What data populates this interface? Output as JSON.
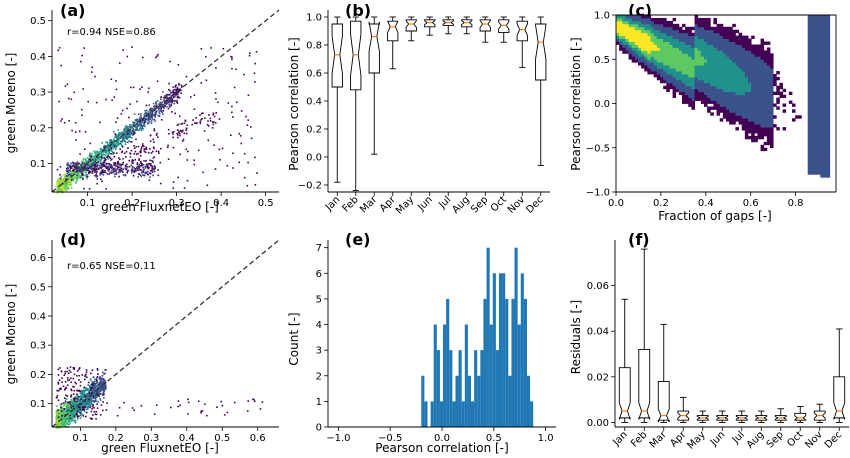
{
  "chart_data": [
    {
      "panel": "(a)",
      "type": "scatter",
      "xlabel": "green FluxnetEO [-]",
      "ylabel": "green Moreno [-]",
      "annotation": "r=0.94 NSE=0.86",
      "xlim": [
        0.02,
        0.53
      ],
      "ylim": [
        0.02,
        0.53
      ],
      "xticks": [
        "0.1",
        "0.2",
        "0.3",
        "0.4",
        "0.5"
      ],
      "yticks": [
        "0.1",
        "0.2",
        "0.3",
        "0.4",
        "0.5"
      ],
      "reference_line": "1:1 dashed",
      "colors": {
        "dense": "#5ec962",
        "mid": "#21918c",
        "sparse": "#440154"
      }
    },
    {
      "panel": "(b)",
      "type": "box",
      "ylabel": "Pearson correlation [-]",
      "ylim": [
        -0.25,
        1.05
      ],
      "yticks": [
        "−0.2",
        "0.0",
        "0.2",
        "0.4",
        "0.6",
        "0.8",
        "1.0"
      ],
      "categories": [
        "Jan",
        "Feb",
        "Mar",
        "Apr",
        "May",
        "Jun",
        "Jul",
        "Aug",
        "Sep",
        "Oct",
        "Nov",
        "Dec"
      ],
      "boxes": [
        {
          "min": -0.18,
          "q1": 0.5,
          "med": 0.73,
          "q3": 0.95,
          "max": 1.0
        },
        {
          "min": -0.24,
          "q1": 0.48,
          "med": 0.73,
          "q3": 0.97,
          "max": 1.0
        },
        {
          "min": 0.02,
          "q1": 0.6,
          "med": 0.86,
          "q3": 0.95,
          "max": 1.0
        },
        {
          "min": 0.63,
          "q1": 0.83,
          "med": 0.93,
          "q3": 0.97,
          "max": 1.0
        },
        {
          "min": 0.83,
          "q1": 0.9,
          "med": 0.95,
          "q3": 0.98,
          "max": 1.0
        },
        {
          "min": 0.87,
          "q1": 0.93,
          "med": 0.96,
          "q3": 0.98,
          "max": 1.0
        },
        {
          "min": 0.88,
          "q1": 0.94,
          "med": 0.96,
          "q3": 0.98,
          "max": 1.0
        },
        {
          "min": 0.88,
          "q1": 0.93,
          "med": 0.96,
          "q3": 0.98,
          "max": 1.0
        },
        {
          "min": 0.82,
          "q1": 0.9,
          "med": 0.95,
          "q3": 0.98,
          "max": 1.0
        },
        {
          "min": 0.82,
          "q1": 0.89,
          "med": 0.94,
          "q3": 0.98,
          "max": 1.0
        },
        {
          "min": 0.64,
          "q1": 0.83,
          "med": 0.91,
          "q3": 0.97,
          "max": 1.0
        },
        {
          "min": -0.06,
          "q1": 0.55,
          "med": 0.82,
          "q3": 0.95,
          "max": 1.0
        }
      ],
      "box_color": "#000000",
      "median_color": "#ff7f0e"
    },
    {
      "panel": "(c)",
      "type": "heatmap",
      "xlabel": "Fraction of gaps [-]",
      "ylabel": "Pearson correlation [-]",
      "xlim": [
        0.0,
        0.98
      ],
      "ylim": [
        -1.0,
        1.0
      ],
      "xticks": [
        "0.0",
        "0.2",
        "0.4",
        "0.6",
        "0.8"
      ],
      "yticks": [
        "−1.0",
        "−0.5",
        "0.0",
        "0.5",
        "1.0"
      ],
      "colormap": [
        "#440154",
        "#3b528b",
        "#21918c",
        "#5ec962",
        "#fde725"
      ]
    },
    {
      "panel": "(d)",
      "type": "scatter",
      "xlabel": "green FluxnetEO [-]",
      "ylabel": "green Moreno [-]",
      "annotation": "r=0.65 NSE=0.11",
      "xlim": [
        0.02,
        0.66
      ],
      "ylim": [
        0.02,
        0.66
      ],
      "xticks": [
        "0.1",
        "0.2",
        "0.3",
        "0.4",
        "0.5",
        "0.6"
      ],
      "yticks": [
        "0.1",
        "0.2",
        "0.3",
        "0.4",
        "0.5",
        "0.6"
      ],
      "reference_line": "1:1 dashed"
    },
    {
      "panel": "(e)",
      "type": "bar",
      "xlabel": "Pearson correlation [-]",
      "ylabel": "Count [-]",
      "xlim": [
        -1.1,
        1.1
      ],
      "ylim": [
        0,
        7.3
      ],
      "xticks": [
        "−1.0",
        "−0.5",
        "0.0",
        "0.5",
        "1.0"
      ],
      "yticks": [
        "0",
        "1",
        "2",
        "3",
        "4",
        "5",
        "6",
        "7"
      ],
      "bin_start": -0.2,
      "bin_width": 0.03,
      "counts": [
        2,
        1,
        0,
        1,
        4,
        3,
        1,
        4,
        5,
        3,
        1,
        2,
        3,
        1,
        4,
        2,
        1,
        3,
        2,
        3,
        5,
        7,
        4,
        6,
        3,
        6,
        6,
        5,
        2,
        5,
        7,
        4,
        6,
        5,
        2,
        1
      ],
      "bar_color": "#1f77b4"
    },
    {
      "panel": "(f)",
      "type": "box",
      "ylabel": "Residuals [-]",
      "ylim": [
        -0.002,
        0.08
      ],
      "yticks": [
        "0.00",
        "0.02",
        "0.04",
        "0.06"
      ],
      "categories": [
        "Jan",
        "Feb",
        "Mar",
        "Apr",
        "May",
        "Jun",
        "Jul",
        "Aug",
        "Sep",
        "Oct",
        "Nov",
        "Dec"
      ],
      "boxes": [
        {
          "min": 0.0,
          "q1": 0.002,
          "med": 0.005,
          "q3": 0.024,
          "max": 0.054
        },
        {
          "min": 0.0,
          "q1": 0.002,
          "med": 0.005,
          "q3": 0.032,
          "max": 0.076
        },
        {
          "min": 0.0,
          "q1": 0.001,
          "med": 0.003,
          "q3": 0.018,
          "max": 0.043
        },
        {
          "min": 0.0,
          "q1": 0.001,
          "med": 0.003,
          "q3": 0.005,
          "max": 0.011
        },
        {
          "min": 0.0,
          "q1": 0.001,
          "med": 0.002,
          "q3": 0.003,
          "max": 0.005
        },
        {
          "min": 0.0,
          "q1": 0.001,
          "med": 0.002,
          "q3": 0.003,
          "max": 0.005
        },
        {
          "min": 0.0,
          "q1": 0.001,
          "med": 0.002,
          "q3": 0.003,
          "max": 0.005
        },
        {
          "min": 0.0,
          "q1": 0.001,
          "med": 0.002,
          "q3": 0.003,
          "max": 0.005
        },
        {
          "min": 0.0,
          "q1": 0.001,
          "med": 0.002,
          "q3": 0.003,
          "max": 0.006
        },
        {
          "min": 0.0,
          "q1": 0.001,
          "med": 0.002,
          "q3": 0.004,
          "max": 0.007
        },
        {
          "min": 0.0,
          "q1": 0.001,
          "med": 0.003,
          "q3": 0.005,
          "max": 0.008
        },
        {
          "min": 0.0,
          "q1": 0.002,
          "med": 0.005,
          "q3": 0.02,
          "max": 0.041
        }
      ],
      "box_color": "#000000",
      "median_color": "#ff7f0e"
    }
  ]
}
